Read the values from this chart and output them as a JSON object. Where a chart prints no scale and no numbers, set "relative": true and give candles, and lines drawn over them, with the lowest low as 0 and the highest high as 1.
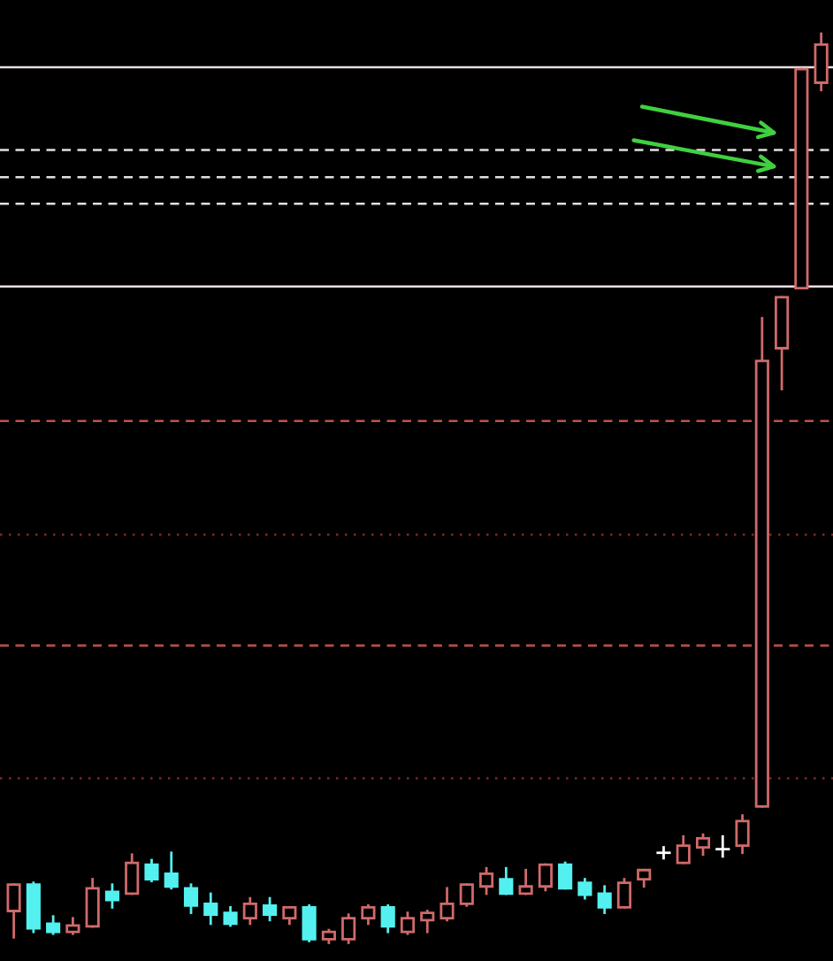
{
  "chart_data": {
    "type": "candlestick",
    "relative": true,
    "categories": [
      null,
      null,
      null,
      null,
      null,
      null,
      null,
      null,
      null,
      null,
      null,
      null,
      null,
      null,
      null,
      null,
      null,
      null,
      null,
      null,
      null,
      null,
      null,
      null,
      null,
      null,
      null,
      null,
      null,
      null,
      null,
      null,
      null,
      null,
      null,
      null,
      null,
      null,
      null,
      null,
      null,
      null
    ],
    "ohlc": [
      [
        0.035,
        0.064,
        0.006,
        0.064
      ],
      [
        0.064,
        0.066,
        0.012,
        0.016
      ],
      [
        0.021,
        0.029,
        0.01,
        0.012
      ],
      [
        0.012,
        0.027,
        0.01,
        0.019
      ],
      [
        0.018,
        0.07,
        0.018,
        0.06
      ],
      [
        0.056,
        0.064,
        0.039,
        0.047
      ],
      [
        0.054,
        0.097,
        0.054,
        0.088
      ],
      [
        0.086,
        0.091,
        0.068,
        0.07
      ],
      [
        0.076,
        0.099,
        0.06,
        0.062
      ],
      [
        0.06,
        0.064,
        0.033,
        0.041
      ],
      [
        0.043,
        0.054,
        0.021,
        0.031
      ],
      [
        0.033,
        0.039,
        0.019,
        0.021
      ],
      [
        0.027,
        0.049,
        0.021,
        0.043
      ],
      [
        0.041,
        0.049,
        0.025,
        0.031
      ],
      [
        0.027,
        0.039,
        0.021,
        0.039
      ],
      [
        0.039,
        0.041,
        0.002,
        0.004
      ],
      [
        0.004,
        0.014,
        0,
        0.012
      ],
      [
        0.004,
        0.031,
        0,
        0.027
      ],
      [
        0.027,
        0.041,
        0.021,
        0.039
      ],
      [
        0.039,
        0.041,
        0.012,
        0.018
      ],
      [
        0.012,
        0.033,
        0.01,
        0.027
      ],
      [
        0.025,
        0.035,
        0.012,
        0.033
      ],
      [
        0.027,
        0.06,
        0.025,
        0.043
      ],
      [
        0.043,
        0.064,
        0.041,
        0.064
      ],
      [
        0.062,
        0.082,
        0.054,
        0.076
      ],
      [
        0.07,
        0.082,
        0.054,
        0.054
      ],
      [
        0.054,
        0.08,
        0.054,
        0.062
      ],
      [
        0.062,
        0.086,
        0.058,
        0.086
      ],
      [
        0.086,
        0.088,
        0.06,
        0.06
      ],
      [
        0.066,
        0.07,
        0.049,
        0.053
      ],
      [
        0.054,
        0.062,
        0.033,
        0.039
      ],
      [
        0.039,
        0.07,
        0.039,
        0.066
      ],
      [
        0.07,
        0.08,
        0.062,
        0.08
      ],
      [
        0.099,
        0.105,
        0.093,
        0.099
      ],
      [
        0.088,
        0.117,
        0.088,
        0.107
      ],
      [
        0.105,
        0.119,
        0.097,
        0.115
      ],
      [
        0.103,
        0.117,
        0.095,
        0.103
      ],
      [
        0.107,
        0.14,
        0.099,
        0.134
      ],
      [
        0.15,
        0.687,
        0.15,
        0.64
      ],
      [
        0.654,
        0.71,
        0.609,
        0.71
      ],
      [
        0.72,
        0.961,
        0.72,
        0.961
      ],
      [
        0.946,
        1.0,
        0.938,
        0.988
      ]
    ],
    "colors": [
      "#d06a6a",
      "#54f0f0",
      "#54f0f0",
      "#d06a6a",
      "#d06a6a",
      "#54f0f0",
      "#d06a6a",
      "#54f0f0",
      "#54f0f0",
      "#54f0f0",
      "#54f0f0",
      "#54f0f0",
      "#d06a6a",
      "#54f0f0",
      "#d06a6a",
      "#54f0f0",
      "#d06a6a",
      "#d06a6a",
      "#d06a6a",
      "#54f0f0",
      "#d06a6a",
      "#d06a6a",
      "#d06a6a",
      "#d06a6a",
      "#d06a6a",
      "#54f0f0",
      "#d06a6a",
      "#d06a6a",
      "#54f0f0",
      "#54f0f0",
      "#54f0f0",
      "#d06a6a",
      "#d06a6a",
      "#ffffff",
      "#d06a6a",
      "#d06a6a",
      "#ffffff",
      "#d06a6a",
      "#d06a6a",
      "#d06a6a",
      "#d06a6a",
      "#d06a6a"
    ],
    "ref_lines": [
      {
        "axis": "y",
        "value": 0.963,
        "color": "#e8e0e0",
        "line_style": "solid"
      },
      {
        "axis": "y",
        "value": 0.722,
        "color": "#e8e0e0",
        "line_style": "solid"
      },
      {
        "axis": "y",
        "value": 0.872,
        "color": "#e0e0e0",
        "line_style": "dashed"
      },
      {
        "axis": "y",
        "value": 0.842,
        "color": "#e0e0e0",
        "line_style": "dashed"
      },
      {
        "axis": "y",
        "value": 0.813,
        "color": "#e0e0e0",
        "line_style": "dashed"
      },
      {
        "axis": "y",
        "value": 0.574,
        "color": "#c05050",
        "line_style": "dashed"
      },
      {
        "axis": "y",
        "value": 0.327,
        "color": "#c05050",
        "line_style": "dashed"
      },
      {
        "axis": "y",
        "value": 0.449,
        "color": "#802828",
        "line_style": "dotted"
      },
      {
        "axis": "y",
        "value": 0.181,
        "color": "#802828",
        "line_style": "dotted"
      }
    ]
  }
}
